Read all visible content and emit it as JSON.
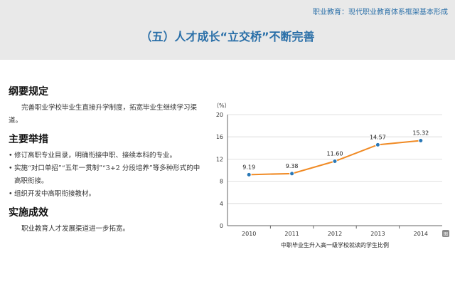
{
  "header": {
    "top_label": "职业教育：现代职业教育体系框架基本形成",
    "title": "（五）人才成长“立交桥”不断完善"
  },
  "content": {
    "section1_heading": "纲要规定",
    "section1_text": "完善职业学校毕业生直接升学制度，拓宽毕业生继续学习渠道。",
    "section2_heading": "主要举措",
    "section2_items": [
      "修订高职专业目录，明确衔接中职、接续本科的专业。",
      "实施“对口单招”“五年一贯制”“3+2 分段培养”等多种形式的中高职衔接。",
      "组织开发中高职衔接教材。"
    ],
    "section3_heading": "实施成效",
    "section3_text": "职业教育人才发展渠道进一步拓宽。"
  },
  "chart_data": {
    "type": "line",
    "title": "",
    "xlabel": "中职毕业生升入高一级学校就读的学生比例",
    "ylabel": "（%）",
    "categories": [
      "2010",
      "2011",
      "2012",
      "2013",
      "2014"
    ],
    "series": [
      {
        "values": [
          9.19,
          9.38,
          11.6,
          14.57,
          15.32
        ],
        "labels": [
          "9.19",
          "9.38",
          "11.60",
          "14.57",
          "15.32"
        ]
      }
    ],
    "ylim": [
      0,
      20
    ],
    "yticks": [
      "0",
      "4",
      "8",
      "12",
      "16",
      "20"
    ],
    "grid": true,
    "line_color": "#f08a24",
    "marker_color": "#2a78b6",
    "corner_badge": "图"
  }
}
